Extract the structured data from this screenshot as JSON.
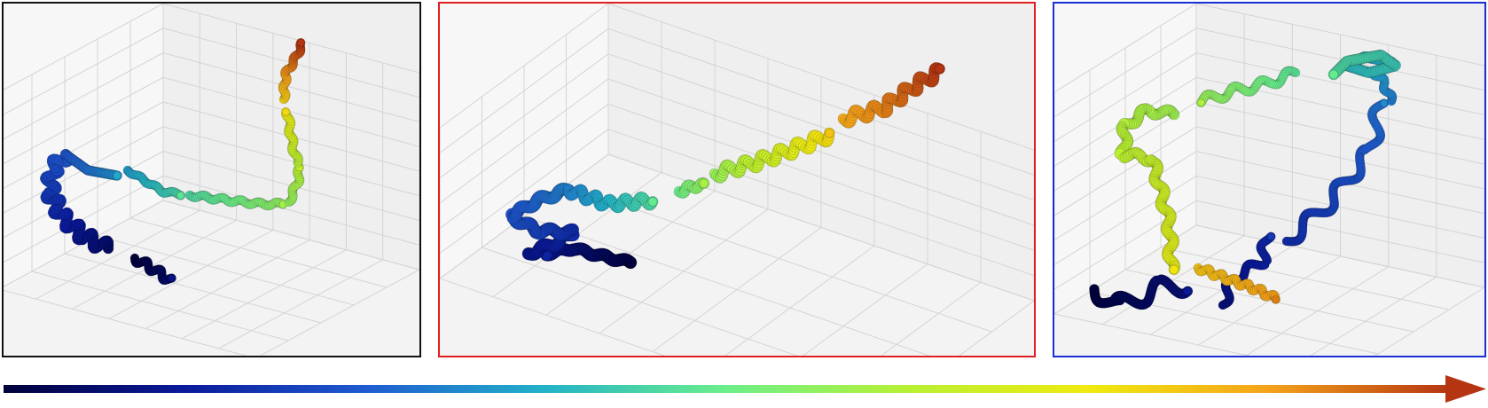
{
  "panels": [
    {
      "name": "panel-1",
      "border_color": "#111111"
    },
    {
      "name": "panel-2",
      "border_color": "#e02020"
    },
    {
      "name": "panel-3",
      "border_color": "#1a2fd6"
    }
  ],
  "colormap": [
    "#00003c",
    "#0a1a9a",
    "#1f5bd0",
    "#23b3c8",
    "#6cef8a",
    "#b8f034",
    "#f0ea10",
    "#f4a21a",
    "#b53512"
  ]
}
